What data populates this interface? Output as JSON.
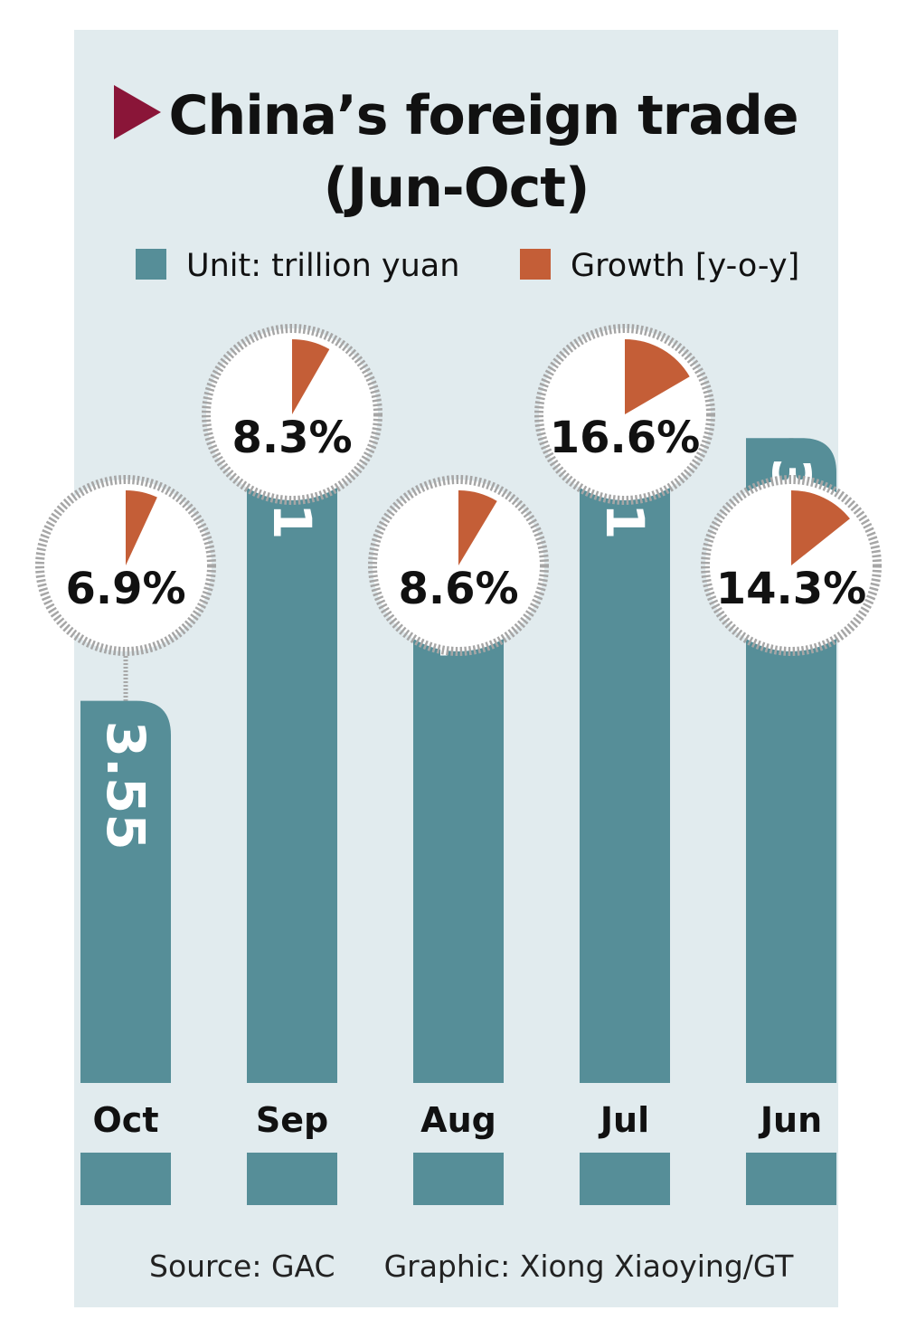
{
  "title_line1": "China’s foreign trade",
  "title_line2": "(Jun-Oct)",
  "legend": {
    "unit_label": "Unit: trillion yuan",
    "growth_label": "Growth [y-o-y]"
  },
  "colors": {
    "bar": "#568e98",
    "growth": "#c45e37",
    "background": "#e1ebee",
    "title_marker": "#8a1538"
  },
  "chart_data": {
    "type": "bar",
    "title": "China’s foreign trade (Jun-Oct)",
    "categories": [
      "Oct",
      "Sep",
      "Aug",
      "Jul",
      "Jun"
    ],
    "series": [
      {
        "name": "Unit: trillion yuan",
        "values": [
          3.55,
          3.81,
          3.71,
          3.81,
          3.77
        ],
        "labels": [
          "3.55",
          "3.81",
          "3.71",
          "3.81",
          "3.77"
        ]
      },
      {
        "name": "Growth [y-o-y]",
        "values": [
          6.9,
          8.3,
          8.6,
          16.6,
          14.3
        ],
        "labels": [
          "6.9%",
          "8.3%",
          "8.6%",
          "16.6%",
          "14.3%"
        ]
      }
    ]
  },
  "footer": {
    "source": "Source: GAC",
    "credit": "Graphic: Xiong Xiaoying/GT"
  }
}
